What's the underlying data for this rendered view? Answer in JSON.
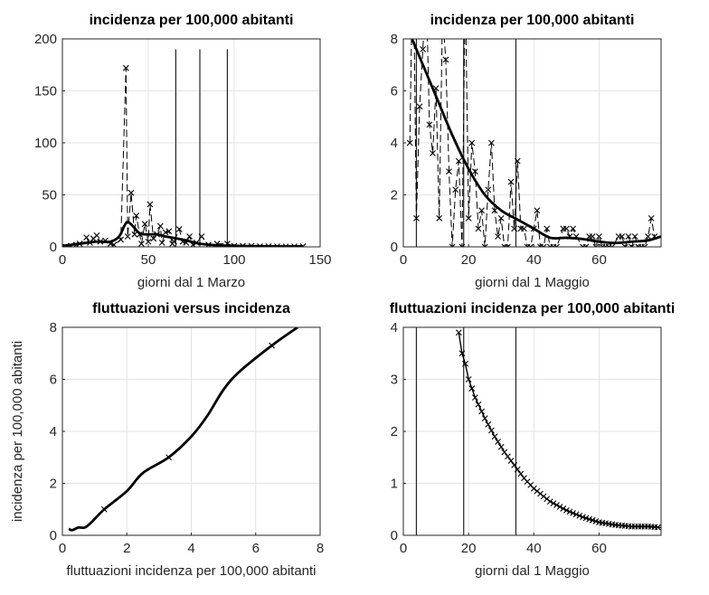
{
  "chart_data": [
    {
      "type": "line",
      "title": "incidenza per 100,000 abitanti",
      "xlabel": "giorni dal 1 Marzo",
      "ylabel": "",
      "xlim": [
        0,
        150
      ],
      "ylim": [
        0,
        200
      ],
      "xticks": [
        0,
        50,
        100,
        150
      ],
      "yticks": [
        0,
        50,
        100,
        150,
        200
      ],
      "grid": true,
      "vlines": {
        "x": [
          66,
          80,
          96
        ],
        "ymax": 190
      },
      "series": [
        {
          "name": "raw",
          "style": "dashed-x",
          "points": [
            [
              2,
              0
            ],
            [
              5,
              1
            ],
            [
              8,
              2
            ],
            [
              10,
              3
            ],
            [
              14,
              9
            ],
            [
              16,
              4
            ],
            [
              18,
              8
            ],
            [
              20,
              11
            ],
            [
              22,
              5
            ],
            [
              25,
              6
            ],
            [
              28,
              3
            ],
            [
              30,
              2
            ],
            [
              34,
              7
            ],
            [
              37,
              172
            ],
            [
              38,
              10
            ],
            [
              40,
              52
            ],
            [
              42,
              12
            ],
            [
              43,
              30
            ],
            [
              45,
              12
            ],
            [
              46,
              3
            ],
            [
              48,
              22
            ],
            [
              50,
              5
            ],
            [
              51,
              41
            ],
            [
              53,
              8
            ],
            [
              55,
              12
            ],
            [
              57,
              20
            ],
            [
              58,
              4
            ],
            [
              60,
              14
            ],
            [
              62,
              15
            ],
            [
              64,
              3
            ],
            [
              65,
              5
            ],
            [
              68,
              17
            ],
            [
              70,
              5
            ],
            [
              72,
              4
            ],
            [
              74,
              10
            ],
            [
              76,
              2
            ],
            [
              78,
              4
            ],
            [
              81,
              10
            ],
            [
              85,
              2
            ],
            [
              90,
              3
            ],
            [
              96,
              3
            ],
            [
              100,
              1
            ],
            [
              105,
              1
            ],
            [
              110,
              1
            ],
            [
              115,
              0.5
            ],
            [
              120,
              0.5
            ],
            [
              125,
              0.4
            ],
            [
              130,
              0.3
            ],
            [
              135,
              0.4
            ],
            [
              140,
              0.5
            ]
          ]
        },
        {
          "name": "smooth",
          "style": "thick",
          "points": [
            [
              0,
              1
            ],
            [
              10,
              3
            ],
            [
              20,
              5
            ],
            [
              28,
              5
            ],
            [
              33,
              10
            ],
            [
              36,
              20
            ],
            [
              38,
              24
            ],
            [
              41,
              20
            ],
            [
              45,
              13
            ],
            [
              50,
              12
            ],
            [
              55,
              12
            ],
            [
              60,
              10
            ],
            [
              70,
              7
            ],
            [
              80,
              3
            ],
            [
              90,
              1.5
            ],
            [
              100,
              1
            ],
            [
              120,
              0.5
            ],
            [
              140,
              0.5
            ]
          ]
        }
      ]
    },
    {
      "type": "line",
      "title": "incidenza per 100,000 abitanti",
      "xlabel": "giorni dal 1 Maggio",
      "ylabel": "",
      "xlim": [
        0,
        79
      ],
      "ylim": [
        0,
        8
      ],
      "xticks": [
        0,
        20,
        40,
        60
      ],
      "yticks": [
        0,
        2,
        4,
        6,
        8
      ],
      "grid": true,
      "vlines": {
        "x": [
          4,
          18.5,
          34.5
        ],
        "ymax": 8
      },
      "series": [
        {
          "name": "raw",
          "style": "dashed-x",
          "points": [
            [
              2,
              4
            ],
            [
              3,
              12
            ],
            [
              4,
              1.1
            ],
            [
              5,
              5.4
            ],
            [
              6,
              7.6
            ],
            [
              7,
              10
            ],
            [
              8,
              4.7
            ],
            [
              9,
              3.6
            ],
            [
              10,
              6.1
            ],
            [
              11,
              1.1
            ],
            [
              12,
              9
            ],
            [
              13,
              7.2
            ],
            [
              14,
              2.9
            ],
            [
              15,
              0
            ],
            [
              16,
              2.2
            ],
            [
              17,
              3.3
            ],
            [
              18,
              0
            ],
            [
              19,
              10
            ],
            [
              20,
              1.1
            ],
            [
              21,
              4
            ],
            [
              22,
              2.9
            ],
            [
              23,
              0.7
            ],
            [
              24,
              1.4
            ],
            [
              25,
              0
            ],
            [
              26,
              2.2
            ],
            [
              27,
              4
            ],
            [
              28,
              1.4
            ],
            [
              29,
              0.4
            ],
            [
              30,
              1.1
            ],
            [
              31,
              0
            ],
            [
              32,
              0
            ],
            [
              33,
              2.5
            ],
            [
              34,
              0.7
            ],
            [
              35,
              3.3
            ],
            [
              36,
              0.7
            ],
            [
              37,
              0.7
            ],
            [
              38,
              0
            ],
            [
              39,
              0
            ],
            [
              40,
              0.7
            ],
            [
              41,
              1.4
            ],
            [
              42,
              0
            ],
            [
              43,
              0
            ],
            [
              44,
              0.7
            ],
            [
              45,
              0
            ],
            [
              46,
              0
            ],
            [
              47,
              0
            ],
            [
              49,
              0.7
            ],
            [
              50,
              0.7
            ],
            [
              51,
              0.4
            ],
            [
              52,
              0.7
            ],
            [
              53,
              0.4
            ],
            [
              55,
              0
            ],
            [
              56,
              0
            ],
            [
              57,
              0.4
            ],
            [
              58,
              0.4
            ],
            [
              59,
              0
            ],
            [
              60,
              0.4
            ],
            [
              61,
              0
            ],
            [
              62,
              0
            ],
            [
              63,
              0
            ],
            [
              64,
              0
            ],
            [
              66,
              0.4
            ],
            [
              67,
              0.4
            ],
            [
              68,
              0
            ],
            [
              69,
              0.4
            ],
            [
              70,
              0
            ],
            [
              71,
              0.4
            ],
            [
              72,
              0
            ],
            [
              73,
              0
            ],
            [
              74,
              0
            ],
            [
              75,
              0.4
            ],
            [
              76,
              1.1
            ],
            [
              77,
              0.4
            ]
          ]
        },
        {
          "name": "smooth",
          "style": "thick",
          "points": [
            [
              2,
              8.2
            ],
            [
              5,
              7.3
            ],
            [
              10,
              5.8
            ],
            [
              15,
              4.3
            ],
            [
              20,
              3
            ],
            [
              25,
              2
            ],
            [
              30,
              1.4
            ],
            [
              35,
              1.05
            ],
            [
              40,
              0.7
            ],
            [
              45,
              0.35
            ],
            [
              50,
              0.35
            ],
            [
              55,
              0.3
            ],
            [
              60,
              0.2
            ],
            [
              65,
              0.15
            ],
            [
              70,
              0.2
            ],
            [
              75,
              0.25
            ],
            [
              79,
              0.4
            ]
          ]
        }
      ]
    },
    {
      "type": "line",
      "title": "fluttuazioni versus incidenza",
      "xlabel": "fluttuazioni incidenza per 100,000 abitanti",
      "ylabel": "incidenza per 100,000 abitanti",
      "xlim": [
        0,
        8
      ],
      "ylim": [
        0,
        8
      ],
      "xticks": [
        0,
        2,
        4,
        6,
        8
      ],
      "yticks": [
        0,
        2,
        4,
        6,
        8
      ],
      "grid": true,
      "series": [
        {
          "name": "curve",
          "style": "thick",
          "points": [
            [
              0.2,
              0.25
            ],
            [
              0.3,
              0.2
            ],
            [
              0.5,
              0.3
            ],
            [
              0.7,
              0.3
            ],
            [
              0.9,
              0.5
            ],
            [
              1.3,
              1
            ],
            [
              2,
              1.7
            ],
            [
              2.5,
              2.4
            ],
            [
              3.3,
              3
            ],
            [
              4,
              3.8
            ],
            [
              4.5,
              4.6
            ],
            [
              5,
              5.6
            ],
            [
              5.5,
              6.3
            ],
            [
              6.5,
              7.3
            ],
            [
              7.3,
              8
            ]
          ]
        },
        {
          "name": "markers",
          "style": "x",
          "points": [
            [
              1.3,
              1
            ],
            [
              3.3,
              3
            ],
            [
              6.5,
              7.3
            ]
          ]
        }
      ]
    },
    {
      "type": "line",
      "title": "fluttuazioni incidenza per 100,000 abitanti",
      "xlabel": "giorni dal 1 Maggio",
      "ylabel": "",
      "xlim": [
        0,
        79
      ],
      "ylim": [
        0,
        4
      ],
      "xticks": [
        0,
        20,
        40,
        60
      ],
      "yticks": [
        0,
        1,
        2,
        3,
        4
      ],
      "grid": true,
      "vlines": {
        "x": [
          4,
          18.5,
          34.5
        ],
        "ymax": 4
      },
      "series": [
        {
          "name": "fluttuazioni",
          "style": "line-x",
          "points": [
            [
              17,
              3.9
            ],
            [
              18,
              3.5
            ],
            [
              19,
              3.3
            ],
            [
              20,
              3.0
            ],
            [
              22,
              2.65
            ],
            [
              25,
              2.25
            ],
            [
              28,
              1.9
            ],
            [
              31,
              1.6
            ],
            [
              34,
              1.35
            ],
            [
              37,
              1.1
            ],
            [
              40,
              0.9
            ],
            [
              45,
              0.65
            ],
            [
              50,
              0.48
            ],
            [
              55,
              0.35
            ],
            [
              60,
              0.25
            ],
            [
              65,
              0.2
            ],
            [
              70,
              0.17
            ],
            [
              75,
              0.17
            ],
            [
              79,
              0.15
            ]
          ]
        }
      ]
    }
  ]
}
